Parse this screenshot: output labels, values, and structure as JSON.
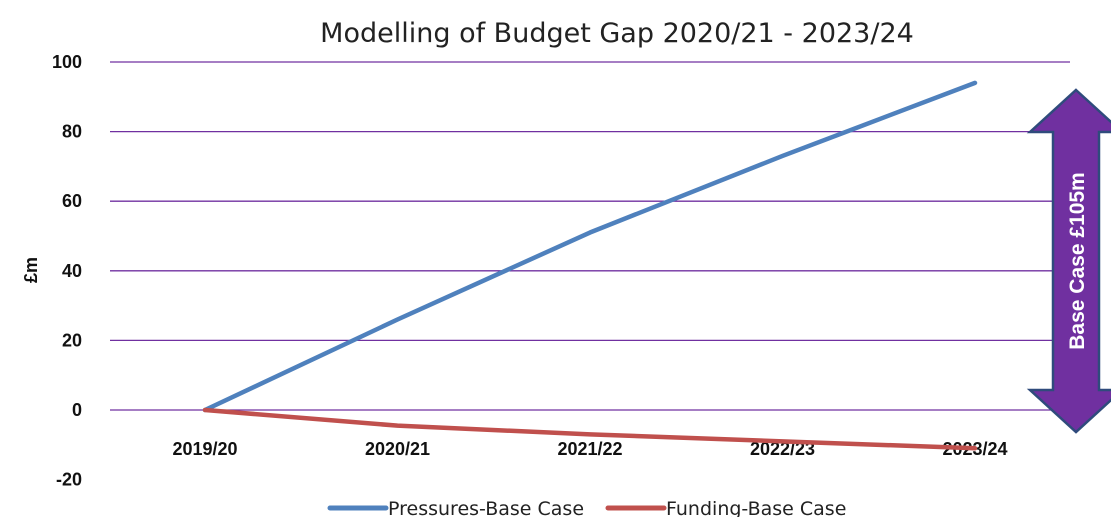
{
  "chart_data": {
    "type": "line",
    "title": "Modelling of Budget Gap 2020/21 - 2023/24",
    "ylabel": "£m",
    "xlabel": "",
    "categories": [
      "2019/20",
      "2020/21",
      "2021/22",
      "2022/23",
      "2023/24"
    ],
    "ylim": [
      -20,
      100
    ],
    "yticks": [
      -20,
      0,
      20,
      40,
      60,
      80,
      100
    ],
    "grid": true,
    "legend_position": "bottom",
    "series": [
      {
        "name": "Pressures-Base Case",
        "color": "#4f81bd",
        "values": [
          0,
          26,
          51,
          73,
          94
        ]
      },
      {
        "name": "Funding-Base Case",
        "color": "#c0504d",
        "values": [
          0,
          -4.5,
          -7,
          -9,
          -11
        ]
      }
    ],
    "annotation": {
      "text": "Base Case £105m",
      "color": "#7030a0",
      "border_color": "#2f4b7c"
    },
    "gridline_color": "#7030a0"
  }
}
